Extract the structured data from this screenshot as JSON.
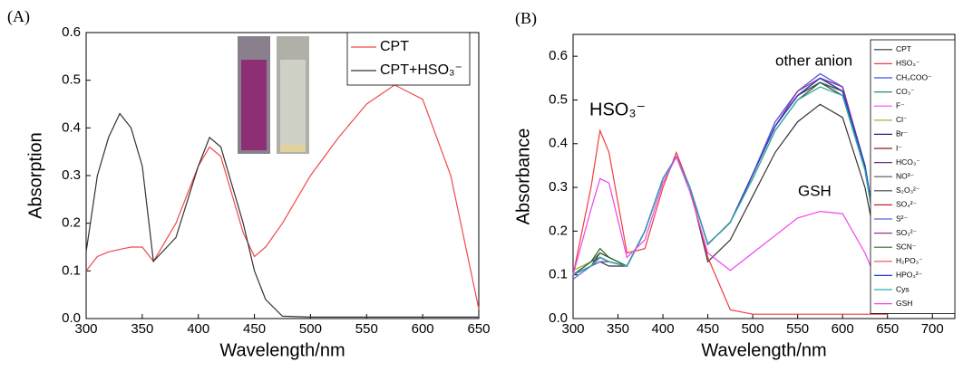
{
  "chart_data": [
    {
      "type": "line",
      "x_label": "Wavelength/nm",
      "y_label": "Absorption",
      "annotations": [
        "(A)"
      ],
      "x": [
        300,
        310,
        320,
        330,
        340,
        350,
        360,
        380,
        400,
        410,
        420,
        440,
        450,
        460,
        475,
        500,
        525,
        550,
        575,
        600,
        625,
        650
      ],
      "series": [
        {
          "name": "CPT",
          "color": "#f04a4a",
          "values": [
            0.1,
            0.13,
            0.14,
            0.145,
            0.15,
            0.15,
            0.12,
            0.2,
            0.32,
            0.36,
            0.34,
            0.18,
            0.13,
            0.15,
            0.2,
            0.3,
            0.38,
            0.45,
            0.49,
            0.46,
            0.3,
            0.02
          ]
        },
        {
          "name": "CPT+HSO₃⁻",
          "color": "#333333",
          "values": [
            0.14,
            0.3,
            0.38,
            0.43,
            0.4,
            0.32,
            0.12,
            0.17,
            0.32,
            0.38,
            0.36,
            0.2,
            0.1,
            0.04,
            0.005,
            0.003,
            0.003,
            0.003,
            0.003,
            0.003,
            0.003,
            0.003
          ]
        }
      ],
      "xlim": [
        300,
        650
      ],
      "xticks": [
        300,
        350,
        400,
        450,
        500,
        550,
        600,
        650
      ],
      "ylim": [
        0,
        0.6
      ],
      "yticks": [
        {
          "value": 0,
          "label": "0.0"
        },
        0.1,
        0.2,
        0.3,
        0.4,
        0.5,
        0.6
      ],
      "legend": "upper-right"
    },
    {
      "type": "line",
      "x_label": "Wavelength/nm",
      "y_label": "Absorbance",
      "annotations": [
        "(B)",
        "HSO₃⁻",
        "other anion",
        "GSH"
      ],
      "x": [
        300,
        320,
        330,
        340,
        360,
        380,
        400,
        415,
        430,
        450,
        475,
        500,
        525,
        550,
        575,
        600,
        625,
        650
      ],
      "series": [
        {
          "name": "CPT",
          "color": "#333333",
          "values": [
            0.1,
            0.12,
            0.13,
            0.12,
            0.12,
            0.2,
            0.32,
            0.37,
            0.3,
            0.13,
            0.18,
            0.28,
            0.38,
            0.45,
            0.49,
            0.46,
            0.3,
            0.04
          ]
        },
        {
          "name": "HSO₃⁻",
          "color": "#f03c3c",
          "values": [
            0.1,
            0.3,
            0.43,
            0.38,
            0.15,
            0.16,
            0.3,
            0.38,
            0.3,
            0.14,
            0.02,
            0.01,
            0.01,
            0.01,
            0.01,
            0.01,
            0.01,
            0.01
          ]
        },
        {
          "name": "CH₃COO⁻",
          "color": "#3355ee",
          "values": [
            0.1,
            0.12,
            0.14,
            0.13,
            0.12,
            0.2,
            0.32,
            0.37,
            0.3,
            0.17,
            0.22,
            0.33,
            0.44,
            0.51,
            0.55,
            0.52,
            0.35,
            0.04
          ]
        },
        {
          "name": "CO₃⁻",
          "color": "#2e8b57",
          "values": [
            0.1,
            0.13,
            0.15,
            0.14,
            0.12,
            0.2,
            0.32,
            0.37,
            0.3,
            0.17,
            0.22,
            0.33,
            0.44,
            0.51,
            0.54,
            0.51,
            0.34,
            0.04
          ]
        },
        {
          "name": "F⁻",
          "color": "#ff44ff",
          "values": [
            0.1,
            0.12,
            0.14,
            0.13,
            0.12,
            0.2,
            0.32,
            0.37,
            0.3,
            0.17,
            0.22,
            0.33,
            0.44,
            0.51,
            0.55,
            0.52,
            0.35,
            0.04
          ]
        },
        {
          "name": "Cl⁻",
          "color": "#9aa830",
          "values": [
            0.11,
            0.13,
            0.16,
            0.14,
            0.12,
            0.2,
            0.32,
            0.37,
            0.3,
            0.17,
            0.22,
            0.32,
            0.43,
            0.5,
            0.53,
            0.51,
            0.34,
            0.04
          ]
        },
        {
          "name": "Br⁻",
          "color": "#202080",
          "values": [
            0.1,
            0.12,
            0.14,
            0.13,
            0.12,
            0.2,
            0.32,
            0.37,
            0.3,
            0.17,
            0.22,
            0.33,
            0.44,
            0.51,
            0.55,
            0.53,
            0.35,
            0.04
          ]
        },
        {
          "name": "I⁻",
          "color": "#8b1a1a",
          "values": [
            0.1,
            0.12,
            0.13,
            0.13,
            0.12,
            0.2,
            0.32,
            0.37,
            0.3,
            0.17,
            0.22,
            0.33,
            0.44,
            0.51,
            0.54,
            0.52,
            0.35,
            0.04
          ]
        },
        {
          "name": "HCO₃⁻",
          "color": "#7a2a8a",
          "values": [
            0.1,
            0.12,
            0.14,
            0.13,
            0.12,
            0.2,
            0.32,
            0.37,
            0.3,
            0.17,
            0.22,
            0.33,
            0.45,
            0.52,
            0.56,
            0.53,
            0.35,
            0.04
          ]
        },
        {
          "name": "NO³⁻",
          "color": "#555555",
          "values": [
            0.1,
            0.13,
            0.14,
            0.13,
            0.12,
            0.2,
            0.32,
            0.37,
            0.3,
            0.17,
            0.22,
            0.33,
            0.44,
            0.51,
            0.55,
            0.52,
            0.35,
            0.04
          ]
        },
        {
          "name": "S₂O₃²⁻",
          "color": "#444444",
          "values": [
            0.1,
            0.12,
            0.15,
            0.14,
            0.12,
            0.2,
            0.32,
            0.37,
            0.3,
            0.17,
            0.22,
            0.32,
            0.43,
            0.5,
            0.54,
            0.51,
            0.34,
            0.04
          ]
        },
        {
          "name": "SO₄²⁻",
          "color": "#cc2222",
          "values": [
            0.1,
            0.12,
            0.14,
            0.13,
            0.12,
            0.2,
            0.32,
            0.37,
            0.3,
            0.17,
            0.22,
            0.33,
            0.44,
            0.51,
            0.55,
            0.52,
            0.35,
            0.04
          ]
        },
        {
          "name": "S²⁻",
          "color": "#5566dd",
          "values": [
            0.09,
            0.12,
            0.13,
            0.13,
            0.12,
            0.2,
            0.32,
            0.37,
            0.3,
            0.17,
            0.22,
            0.33,
            0.45,
            0.52,
            0.56,
            0.53,
            0.35,
            0.04
          ]
        },
        {
          "name": "SO₃²⁻",
          "color": "#993399",
          "values": [
            0.1,
            0.12,
            0.14,
            0.13,
            0.12,
            0.2,
            0.32,
            0.37,
            0.3,
            0.17,
            0.22,
            0.33,
            0.44,
            0.52,
            0.55,
            0.53,
            0.35,
            0.04
          ]
        },
        {
          "name": "SCN⁻",
          "color": "#2a6e2a",
          "values": [
            0.1,
            0.13,
            0.16,
            0.14,
            0.12,
            0.2,
            0.32,
            0.37,
            0.3,
            0.17,
            0.22,
            0.33,
            0.44,
            0.51,
            0.54,
            0.52,
            0.34,
            0.04
          ]
        },
        {
          "name": "H₂PO₃⁻",
          "color": "#e05050",
          "values": [
            0.1,
            0.12,
            0.14,
            0.13,
            0.12,
            0.2,
            0.32,
            0.37,
            0.3,
            0.17,
            0.22,
            0.33,
            0.44,
            0.51,
            0.55,
            0.52,
            0.35,
            0.04
          ]
        },
        {
          "name": "HPO₃²⁻",
          "color": "#1e3cdc",
          "values": [
            0.1,
            0.12,
            0.14,
            0.13,
            0.12,
            0.2,
            0.32,
            0.37,
            0.3,
            0.17,
            0.22,
            0.33,
            0.44,
            0.51,
            0.55,
            0.52,
            0.35,
            0.04
          ]
        },
        {
          "name": "Cys",
          "color": "#2ab0b0",
          "values": [
            0.1,
            0.12,
            0.14,
            0.13,
            0.12,
            0.2,
            0.32,
            0.37,
            0.3,
            0.17,
            0.22,
            0.32,
            0.43,
            0.5,
            0.53,
            0.51,
            0.34,
            0.04
          ]
        },
        {
          "name": "GSH",
          "color": "#ee44ee",
          "values": [
            0.1,
            0.25,
            0.32,
            0.31,
            0.14,
            0.18,
            0.31,
            0.37,
            0.29,
            0.15,
            0.11,
            0.15,
            0.19,
            0.23,
            0.245,
            0.24,
            0.15,
            0.03
          ]
        }
      ],
      "xlim": [
        300,
        725
      ],
      "xticks": [
        300,
        350,
        400,
        450,
        500,
        550,
        600,
        650,
        700
      ],
      "ylim": [
        0,
        0.65
      ],
      "yticks": [
        {
          "value": 0,
          "label": "0.0"
        },
        0.1,
        0.2,
        0.3,
        0.4,
        0.5,
        0.6
      ],
      "legend": "upper-right"
    }
  ]
}
